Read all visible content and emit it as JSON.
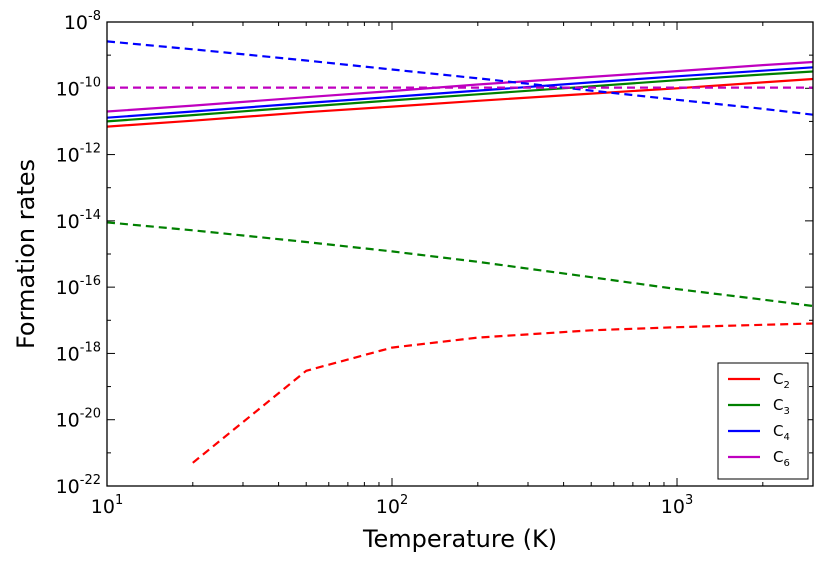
{
  "chart_data": {
    "type": "line",
    "title": "",
    "xlabel": "Temperature (K)",
    "ylabel": "Formation rates",
    "xscale": "log",
    "yscale": "log",
    "xlim": [
      10,
      3000
    ],
    "ylim": [
      1e-22,
      1e-08
    ],
    "grid": false,
    "legend_position": "lower-right",
    "x_ticks": [
      {
        "value": 10,
        "base": "10",
        "exp": "1"
      },
      {
        "value": 100,
        "base": "10",
        "exp": "2"
      },
      {
        "value": 1000,
        "base": "10",
        "exp": "3"
      }
    ],
    "y_ticks": [
      {
        "value": 1e-08,
        "base": "10",
        "exp": "-8"
      },
      {
        "value": 1e-10,
        "base": "10",
        "exp": "-10"
      },
      {
        "value": 1e-12,
        "base": "10",
        "exp": "-12"
      },
      {
        "value": 1e-14,
        "base": "10",
        "exp": "-14"
      },
      {
        "value": 1e-16,
        "base": "10",
        "exp": "-16"
      },
      {
        "value": 1e-18,
        "base": "10",
        "exp": "-18"
      },
      {
        "value": 1e-20,
        "base": "10",
        "exp": "-20"
      },
      {
        "value": 1e-22,
        "base": "10",
        "exp": "-22"
      }
    ],
    "x": [
      10,
      20,
      50,
      100,
      200,
      500,
      1000,
      2000,
      3000
    ],
    "series": [
      {
        "name": "C2",
        "label_base": "C",
        "label_sub": "2",
        "color": "#ff0000",
        "style": "solid",
        "values": [
          7e-12,
          1.05e-11,
          1.9e-11,
          2.8e-11,
          4.2e-11,
          6.9e-11,
          1e-10,
          1.5e-10,
          1.9e-10
        ]
      },
      {
        "name": "C3",
        "label_base": "C",
        "label_sub": "3",
        "color": "#008000",
        "style": "solid",
        "values": [
          1e-11,
          1.55e-11,
          2.8e-11,
          4.3e-11,
          6.6e-11,
          1.15e-10,
          1.75e-10,
          2.6e-10,
          3.2e-10
        ]
      },
      {
        "name": "C4",
        "label_base": "C",
        "label_sub": "4",
        "color": "#0000ff",
        "style": "solid",
        "values": [
          1.3e-11,
          2e-11,
          3.6e-11,
          5.5e-11,
          8.5e-11,
          1.5e-10,
          2.3e-10,
          3.4e-10,
          4.3e-10
        ]
      },
      {
        "name": "C6",
        "label_base": "C",
        "label_sub": "6",
        "color": "#bf00bf",
        "style": "solid",
        "values": [
          2e-11,
          3e-11,
          5.4e-11,
          8.3e-11,
          1.3e-10,
          2.2e-10,
          3.3e-10,
          5e-10,
          6.2e-10
        ]
      },
      {
        "name": "C2 (dashed)",
        "color": "#ff0000",
        "style": "dashed",
        "values": [
          null,
          5e-22,
          3e-19,
          1.5e-18,
          3e-18,
          5e-18,
          6.2e-18,
          7.3e-18,
          8e-18
        ]
      },
      {
        "name": "C3 (dashed)",
        "color": "#008000",
        "style": "dashed",
        "values": [
          9e-15,
          5.2e-15,
          2.3e-15,
          1.2e-15,
          5.8e-16,
          2e-16,
          8.7e-17,
          4.2e-17,
          2.7e-17
        ]
      },
      {
        "name": "C4 (dashed)",
        "color": "#0000ff",
        "style": "dashed",
        "values": [
          2.6e-09,
          1.5e-09,
          6.9e-10,
          3.7e-10,
          2e-10,
          8.5e-11,
          4.5e-11,
          2.4e-11,
          1.6e-11
        ]
      },
      {
        "name": "C6 (dashed)",
        "color": "#bf00bf",
        "style": "dashed",
        "values": [
          1.05e-10,
          1.05e-10,
          1.05e-10,
          1.05e-10,
          1.05e-10,
          1.05e-10,
          1.05e-10,
          1.05e-10,
          1.05e-10
        ]
      }
    ]
  }
}
